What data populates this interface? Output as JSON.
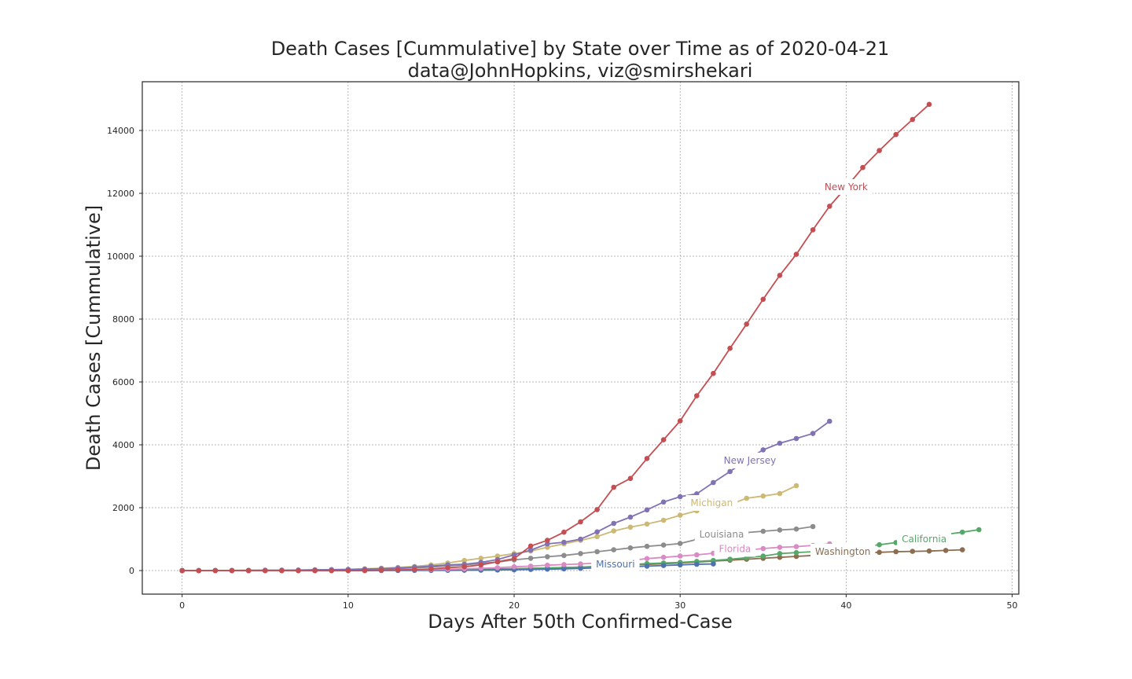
{
  "chart_data": {
    "type": "line",
    "title": "Death Cases [Cummulative] by State over Time as of 2020-04-21",
    "subtitle": "data@JohnHopkins, viz@smirshekari",
    "xlabel": "Days After 50th Confirmed-Case",
    "ylabel": "Death Cases [Cummulative]",
    "xlim": [
      -2.4,
      50.4
    ],
    "ylim": [
      -750,
      15550
    ],
    "xticks": [
      0,
      10,
      20,
      30,
      40,
      50
    ],
    "yticks": [
      0,
      2000,
      4000,
      6000,
      8000,
      10000,
      12000,
      14000
    ],
    "grid": true,
    "legend": "inline labels",
    "series": [
      {
        "name": "Washington",
        "color": "#8c6d4f",
        "label_x": 39.8,
        "label_y": 600,
        "x": [
          0,
          1,
          2,
          3,
          4,
          5,
          6,
          7,
          8,
          9,
          10,
          11,
          12,
          13,
          14,
          15,
          16,
          17,
          18,
          19,
          20,
          21,
          22,
          23,
          24,
          25,
          26,
          27,
          28,
          29,
          30,
          31,
          32,
          33,
          34,
          35,
          36,
          37,
          38,
          39,
          40,
          41,
          42,
          43,
          44,
          45,
          46,
          47
        ],
        "y": [
          0,
          0,
          0,
          0,
          0,
          0,
          1,
          1,
          1,
          2,
          3,
          5,
          10,
          15,
          20,
          25,
          30,
          35,
          42,
          50,
          60,
          70,
          80,
          95,
          110,
          130,
          150,
          175,
          195,
          215,
          240,
          270,
          300,
          330,
          360,
          390,
          420,
          450,
          480,
          500,
          530,
          560,
          580,
          600,
          610,
          620,
          640,
          660
        ]
      },
      {
        "name": "California",
        "color": "#55a868",
        "label_x": 44.7,
        "label_y": 1000,
        "x": [
          0,
          1,
          2,
          3,
          4,
          5,
          6,
          7,
          8,
          9,
          10,
          11,
          12,
          13,
          14,
          15,
          16,
          17,
          18,
          19,
          20,
          21,
          22,
          23,
          24,
          25,
          26,
          27,
          28,
          29,
          30,
          31,
          32,
          33,
          34,
          35,
          36,
          37,
          38,
          39,
          40,
          41,
          42,
          43,
          44,
          45,
          46,
          47,
          48
        ],
        "y": [
          0,
          0,
          0,
          0,
          0,
          0,
          1,
          1,
          1,
          2,
          2,
          3,
          5,
          8,
          10,
          15,
          20,
          28,
          35,
          45,
          55,
          65,
          80,
          95,
          110,
          130,
          160,
          190,
          220,
          240,
          260,
          290,
          320,
          360,
          410,
          460,
          540,
          570,
          600,
          640,
          700,
          760,
          820,
          890,
          960,
          1120,
          1150,
          1220,
          1300
        ]
      },
      {
        "name": "Missouri",
        "color": "#4c72b0",
        "label_x": 26.1,
        "label_y": 200,
        "x": [
          0,
          1,
          2,
          3,
          4,
          5,
          6,
          7,
          8,
          9,
          10,
          11,
          12,
          13,
          14,
          15,
          16,
          17,
          18,
          19,
          20,
          21,
          22,
          23,
          24,
          25,
          26,
          27,
          28,
          29,
          30,
          31,
          32
        ],
        "y": [
          0,
          0,
          0,
          0,
          0,
          0,
          0,
          0,
          0,
          0,
          1,
          1,
          2,
          3,
          4,
          5,
          8,
          10,
          13,
          18,
          25,
          35,
          45,
          55,
          70,
          85,
          100,
          115,
          140,
          160,
          180,
          200,
          210
        ]
      },
      {
        "name": "Florida",
        "color": "#da8bc3",
        "label_x": 33.3,
        "label_y": 690,
        "x": [
          0,
          1,
          2,
          3,
          4,
          5,
          6,
          7,
          8,
          9,
          10,
          11,
          12,
          13,
          14,
          15,
          16,
          17,
          18,
          19,
          20,
          21,
          22,
          23,
          24,
          25,
          26,
          27,
          28,
          29,
          30,
          31,
          32,
          33,
          34,
          35,
          36,
          37,
          38,
          39
        ],
        "y": [
          0,
          0,
          0,
          0,
          1,
          1,
          2,
          3,
          5,
          7,
          10,
          12,
          15,
          20,
          25,
          30,
          40,
          55,
          70,
          90,
          120,
          140,
          170,
          190,
          210,
          240,
          280,
          320,
          380,
          420,
          460,
          500,
          550,
          600,
          650,
          700,
          740,
          760,
          800,
          850
        ]
      },
      {
        "name": "Louisiana",
        "color": "#8c8c8c",
        "label_x": 32.5,
        "label_y": 1150,
        "x": [
          0,
          1,
          2,
          3,
          4,
          5,
          6,
          7,
          8,
          9,
          10,
          11,
          12,
          13,
          14,
          15,
          16,
          17,
          18,
          19,
          20,
          21,
          22,
          23,
          24,
          25,
          26,
          27,
          28,
          29,
          30,
          31,
          32,
          33,
          34,
          35,
          36,
          37,
          38
        ],
        "y": [
          0,
          1,
          2,
          3,
          5,
          7,
          10,
          15,
          20,
          25,
          30,
          40,
          55,
          65,
          85,
          110,
          150,
          180,
          230,
          270,
          340,
          390,
          440,
          480,
          540,
          600,
          660,
          720,
          770,
          810,
          860,
          990,
          1050,
          1150,
          1210,
          1250,
          1290,
          1320,
          1400
        ]
      },
      {
        "name": "Michigan",
        "color": "#ccb974",
        "label_x": 31.9,
        "label_y": 2150,
        "x": [
          0,
          1,
          2,
          3,
          4,
          5,
          6,
          7,
          8,
          9,
          10,
          11,
          12,
          13,
          14,
          15,
          16,
          17,
          18,
          19,
          20,
          21,
          22,
          23,
          24,
          25,
          26,
          27,
          28,
          29,
          30,
          31,
          32,
          33,
          34,
          35,
          36,
          37
        ],
        "y": [
          0,
          1,
          3,
          5,
          8,
          10,
          12,
          15,
          22,
          30,
          40,
          55,
          75,
          100,
          130,
          180,
          240,
          320,
          390,
          460,
          540,
          620,
          740,
          850,
          960,
          1080,
          1260,
          1380,
          1480,
          1600,
          1760,
          1900,
          2000,
          2100,
          2300,
          2370,
          2450,
          2700
        ]
      },
      {
        "name": "New Jersey",
        "color": "#8172b3",
        "label_x": 34.2,
        "label_y": 3500,
        "x": [
          0,
          1,
          2,
          3,
          4,
          5,
          6,
          7,
          8,
          9,
          10,
          11,
          12,
          13,
          14,
          15,
          16,
          17,
          18,
          19,
          20,
          21,
          22,
          23,
          24,
          25,
          26,
          27,
          28,
          29,
          30,
          31,
          32,
          33,
          34,
          35,
          36,
          37,
          38,
          39
        ],
        "y": [
          0,
          1,
          2,
          3,
          5,
          8,
          10,
          15,
          20,
          27,
          35,
          45,
          60,
          80,
          110,
          140,
          180,
          200,
          260,
          350,
          500,
          650,
          850,
          900,
          1000,
          1230,
          1500,
          1700,
          1930,
          2180,
          2350,
          2440,
          2800,
          3150,
          3520,
          3840,
          4050,
          4200,
          4360,
          4750
        ]
      },
      {
        "name": "New York",
        "color": "#c44e52",
        "label_x": 40.0,
        "label_y": 12200,
        "x": [
          0,
          1,
          2,
          3,
          4,
          5,
          6,
          7,
          8,
          9,
          10,
          11,
          12,
          13,
          14,
          15,
          16,
          17,
          18,
          19,
          20,
          21,
          22,
          23,
          24,
          25,
          26,
          27,
          28,
          29,
          30,
          31,
          32,
          33,
          34,
          35,
          36,
          37,
          38,
          39,
          40,
          41,
          42,
          43,
          44,
          45
        ],
        "y": [
          0,
          0,
          0,
          0,
          0,
          0,
          0,
          0,
          0,
          0,
          0,
          2,
          10,
          20,
          30,
          50,
          90,
          120,
          180,
          280,
          380,
          780,
          960,
          1220,
          1550,
          1940,
          2650,
          2930,
          3565,
          4160,
          4760,
          5560,
          6270,
          7070,
          7840,
          8630,
          9390,
          10060,
          10840,
          11590,
          12190,
          12820,
          13360,
          13870,
          14350,
          14830
        ]
      }
    ]
  }
}
